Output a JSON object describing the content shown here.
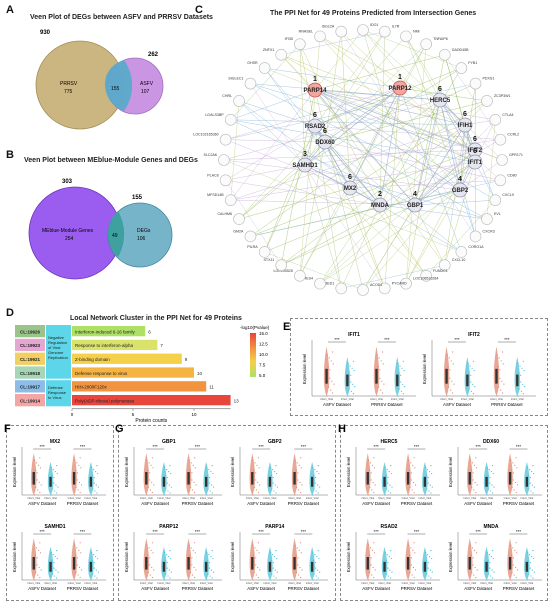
{
  "panelA": {
    "label": "A",
    "title": "Veen Plot of DEGs between ASFV and PRRSV Datasets",
    "top_left": "930",
    "top_right": "262",
    "left_name": "PRRSV",
    "left_count": "775",
    "center_count": "155",
    "right_name": "ASFV",
    "right_count": "107",
    "colors": {
      "left": "#c9b27a",
      "right": "#c58be0",
      "overlap": "#5aaacb"
    }
  },
  "panelB": {
    "label": "B",
    "title": "Veen Plot between MEblue-Module Genes and DEGs",
    "top_left": "303",
    "top_right": "155",
    "left_name": "MEblue-Module Genes",
    "left_count": "254",
    "center_count": "49",
    "right_name": "DEGs",
    "right_count": "106",
    "colors": {
      "left": "#9b5cf0",
      "right": "#6fb0c8",
      "overlap": "#3fa0a0"
    }
  },
  "panelC": {
    "label": "C",
    "title": "The PPI Net for 49 Proteins Predicted from Intersection Genes",
    "outer_nodes": [
      "IDO1",
      "IL7R",
      "NMI",
      "TNFAIP6",
      "GADD45B",
      "FYB1",
      "PDXS1",
      "ZC3P3W1",
      "CTLA4",
      "CCRL2",
      "GPR171",
      "CD80",
      "CXCL9",
      "EVL",
      "CXCR3",
      "CORO1A",
      "CXCL10",
      "FUNDC1",
      "LOC106510284",
      "PYCARD",
      "ACOD1",
      "ZBED1",
      "HES4",
      "LOC100525",
      "STX11",
      "PILRA",
      "GM2A",
      "CALHM6",
      "MFSD14B",
      "PLAC8",
      "SLC2A6",
      "LOC102165360",
      "LGALS3BP",
      "CHRL",
      "SIGLEC1",
      "GHSR",
      "ZNFX1",
      "IFI35",
      "RNASEL",
      "ISG12A"
    ],
    "hub_nodes": [
      {
        "name": "PARP14",
        "rank": "1"
      },
      {
        "name": "PARP12",
        "rank": "1"
      },
      {
        "name": "HERC5",
        "rank": "6"
      },
      {
        "name": "RSAD2",
        "rank": "6"
      },
      {
        "name": "IFIH1",
        "rank": "6"
      },
      {
        "name": "DDX60",
        "rank": "6"
      },
      {
        "name": "IFIT2",
        "rank": "6"
      },
      {
        "name": "SAMHD1",
        "rank": "3"
      },
      {
        "name": "IFIT1",
        "rank": "6"
      },
      {
        "name": "MX2",
        "rank": "6"
      },
      {
        "name": "GBP2",
        "rank": "4"
      },
      {
        "name": "MNDA",
        "rank": "2"
      },
      {
        "name": "GBP1",
        "rank": "4"
      }
    ]
  },
  "panelD": {
    "label": "D",
    "title": "Local Network Cluster in the PPI Net for 49 Proteins",
    "xlabel": "Protein counts",
    "ticks": [
      "0",
      "5",
      "10"
    ],
    "legend_title": "-log10(Pvalue)",
    "legend_ticks": [
      "15.0",
      "12.5",
      "10.0",
      "7.5",
      "5.0"
    ],
    "groups": [
      {
        "name": "Negative Regulation of Viral Genome Replication",
        "color": "#5cd6e8"
      },
      {
        "name": "Defense Response to Virus",
        "color": "#5cd6e8"
      }
    ],
    "clusters": [
      {
        "id": "CL:19926",
        "color": "#9bc48a",
        "term": "Interferon-induced 6-16 family",
        "count": 6,
        "bar": "#aee066"
      },
      {
        "id": "CL:19923",
        "color": "#e6a6d2",
        "term": "Response to interferon-alpha",
        "count": 7,
        "bar": "#d9e26a"
      },
      {
        "id": "CL:19921",
        "color": "#f2cf62",
        "term": "Z-binding domain",
        "count": 9,
        "bar": "#f5d04a"
      },
      {
        "id": "CL:19918",
        "color": "#a5d6b5",
        "term": "Defense response to virus",
        "count": 10,
        "bar": "#f5b342"
      },
      {
        "id": "CL:19917",
        "color": "#8bbde8",
        "term": "HIN-200/IF120x",
        "count": 11,
        "bar": "#f29340"
      },
      {
        "id": "CL:19914",
        "color": "#f2a6a6",
        "term": "Poly(ADP-ribose) polymerase",
        "count": 13,
        "bar": "#e8453c"
      }
    ]
  },
  "violin": {
    "ylabel": "Expression level",
    "xgroups": [
      "ASFV Dataset",
      "PRRSV Dataset"
    ],
    "xticks": [
      "Infect_Vital",
      "Infect_Vital"
    ],
    "sig": "***",
    "colors": {
      "case": "#e08872",
      "control": "#4cc0d6"
    },
    "panels": [
      {
        "label": "E",
        "genes": [
          "IFIT1",
          "IFIT2"
        ]
      },
      {
        "label": "F",
        "genes": [
          "MX2",
          "SAMHD1"
        ]
      },
      {
        "label": "G",
        "genes": [
          "GBP1",
          "GBP2",
          "PARP12",
          "PARP14"
        ]
      },
      {
        "label": "H",
        "genes": [
          "HERC5",
          "DDX60",
          "RSAD2",
          "MNDA"
        ]
      }
    ]
  }
}
